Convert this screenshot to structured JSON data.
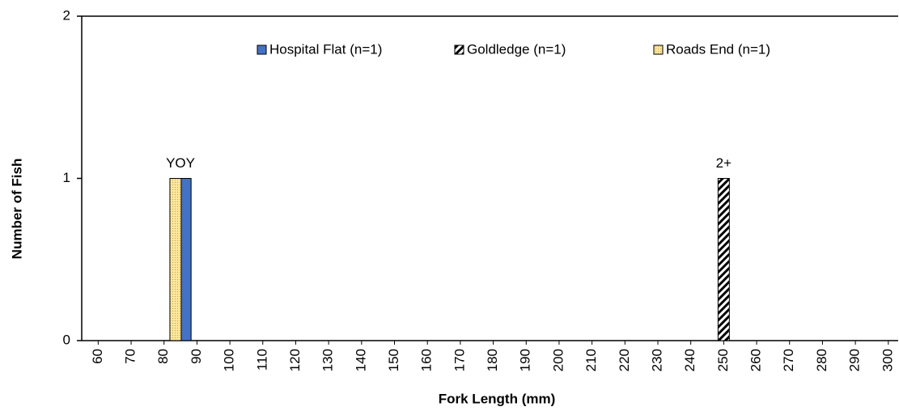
{
  "chart_data": {
    "type": "bar",
    "x_label": "Fork Length (mm)",
    "y_label": "Number of Fish",
    "series": [
      {
        "name": "Hospital Flat (n=1)",
        "color": "#4472c4",
        "x": [
          86.5
        ],
        "values": [
          1
        ]
      },
      {
        "name": "Goldledge (n=1)",
        "color": "#000000",
        "x": [
          250
        ],
        "values": [
          1
        ]
      },
      {
        "name": "Roads End (n=1)",
        "color": "#ffe699",
        "x": [
          83.5
        ],
        "values": [
          1
        ]
      }
    ],
    "annotations": [
      {
        "text": "YOY",
        "x": 85,
        "y": 1
      },
      {
        "text": "2+",
        "x": 250,
        "y": 1
      }
    ],
    "xlim": [
      55,
      303
    ],
    "xticks": [
      60,
      70,
      80,
      90,
      100,
      110,
      120,
      130,
      140,
      150,
      160,
      170,
      180,
      190,
      200,
      210,
      220,
      230,
      240,
      250,
      260,
      270,
      280,
      290,
      300
    ],
    "ylim": [
      0,
      2
    ],
    "yticks": [
      0,
      1,
      2
    ],
    "legend": "top"
  }
}
